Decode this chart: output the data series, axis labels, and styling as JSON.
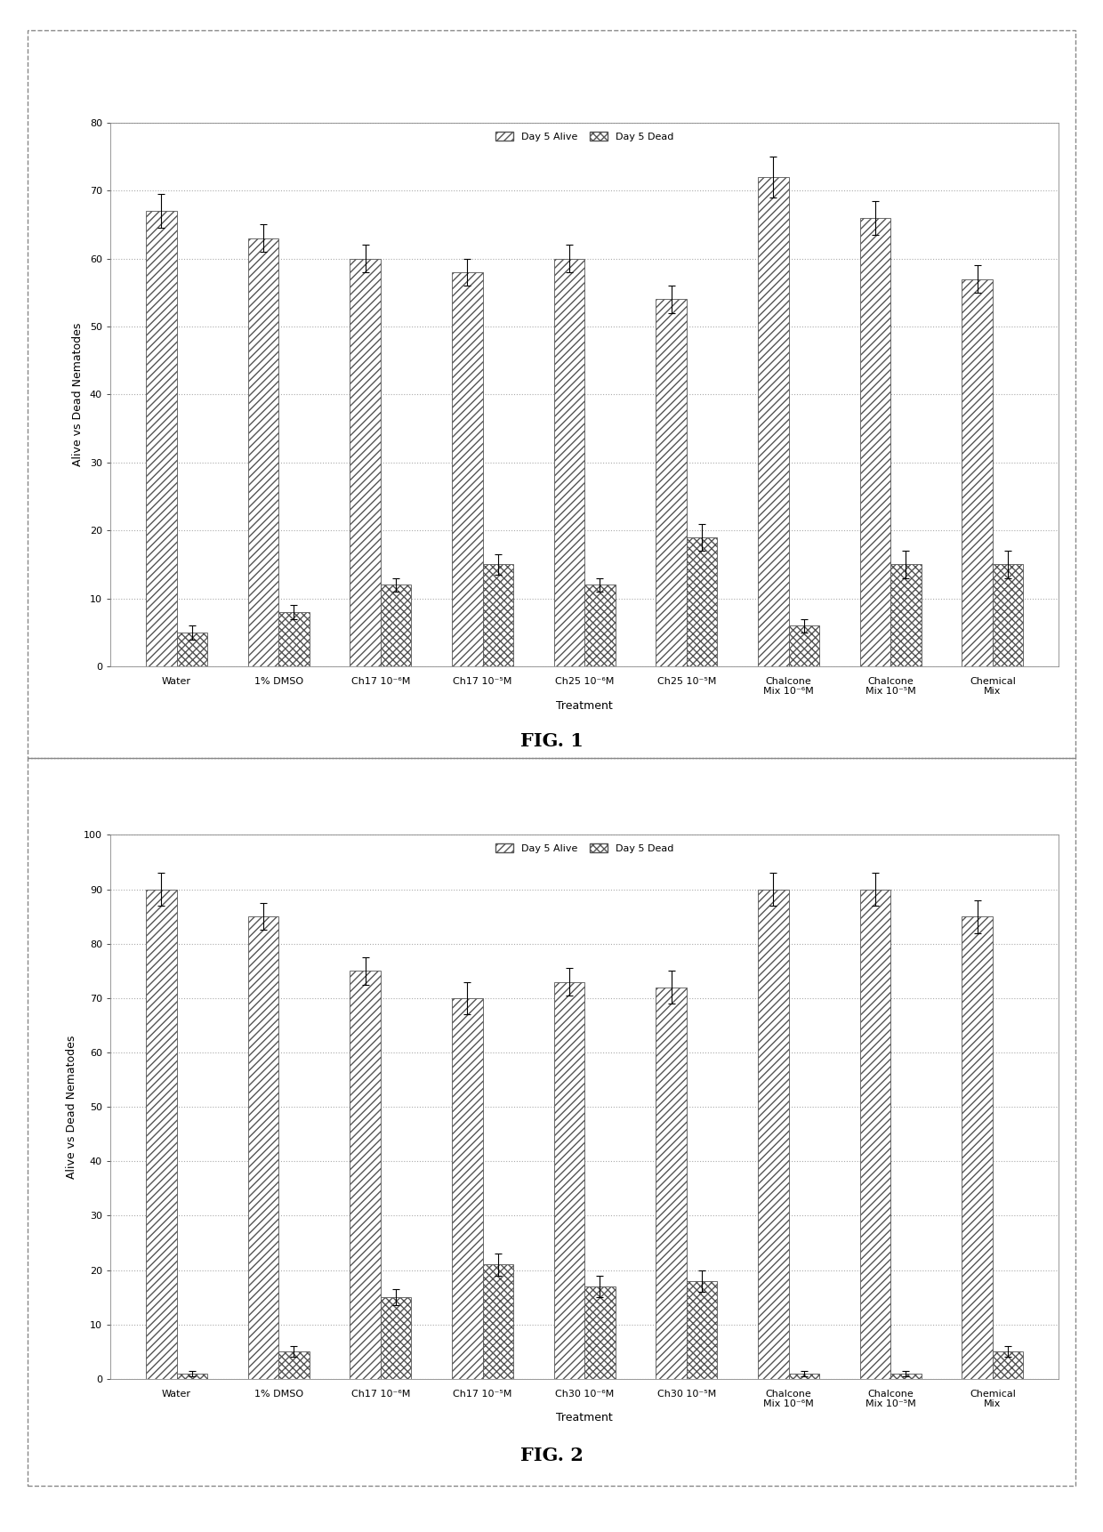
{
  "fig1": {
    "ylabel": "Alive vs Dead Nematodes",
    "xlabel": "Treatment",
    "ylim": [
      0,
      80
    ],
    "yticks": [
      0,
      10,
      20,
      30,
      40,
      50,
      60,
      70,
      80
    ],
    "legend_labels": [
      "Day 5 Alive",
      "Day 5 Dead"
    ],
    "categories": [
      "Water",
      "1% DMSO",
      "Ch17 10⁻⁶M",
      "Ch17 10⁻⁵M",
      "Ch25 10⁻⁶M",
      "Ch25 10⁻⁵M",
      "Chalcone\nMix 10⁻⁶M",
      "Chalcone\nMix 10⁻⁵M",
      "Chemical\nMix"
    ],
    "alive_values": [
      67,
      63,
      60,
      58,
      60,
      54,
      72,
      66,
      57
    ],
    "dead_values": [
      5,
      8,
      12,
      15,
      12,
      19,
      6,
      15,
      15
    ],
    "alive_err": [
      2.5,
      2,
      2,
      2,
      2,
      2,
      3,
      2.5,
      2
    ],
    "dead_err": [
      1,
      1,
      1,
      1.5,
      1,
      2,
      1,
      2,
      2
    ],
    "fig_label": "FIG. 1"
  },
  "fig2": {
    "ylabel": "Alive vs Dead Nematodes",
    "xlabel": "Treatment",
    "ylim": [
      0,
      100
    ],
    "yticks": [
      0,
      10,
      20,
      30,
      40,
      50,
      60,
      70,
      80,
      90,
      100
    ],
    "legend_labels": [
      "Day 5 Alive",
      "Day 5 Dead"
    ],
    "categories": [
      "Water",
      "1% DMSO",
      "Ch17 10⁻⁶M",
      "Ch17 10⁻⁵M",
      "Ch30 10⁻⁶M",
      "Ch30 10⁻⁵M",
      "Chalcone\nMix 10⁻⁶M",
      "Chalcone\nMix 10⁻⁵M",
      "Chemical\nMix"
    ],
    "alive_values": [
      90,
      85,
      75,
      70,
      73,
      72,
      90,
      90,
      85
    ],
    "dead_values": [
      1,
      5,
      15,
      21,
      17,
      18,
      1,
      1,
      5
    ],
    "alive_err": [
      3,
      2.5,
      2.5,
      3,
      2.5,
      3,
      3,
      3,
      3
    ],
    "dead_err": [
      0.5,
      1,
      1.5,
      2,
      2,
      2,
      0.5,
      0.5,
      1
    ],
    "fig_label": "FIG. 2"
  },
  "bar_width": 0.3,
  "alive_color": "#ffffff",
  "dead_color": "#ffffff",
  "alive_hatch": "////",
  "dead_hatch": "xxxx",
  "alive_edge": "#555555",
  "dead_edge": "#555555",
  "background_color": "#ffffff",
  "grid_color": "#aaaaaa",
  "fontsize_axis_label": 9,
  "fontsize_tick": 8,
  "fontsize_legend": 8,
  "fontsize_xlabel": 9,
  "fontsize_fig_label": 15
}
